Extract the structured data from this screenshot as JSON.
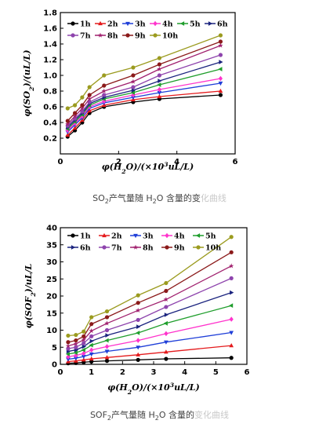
{
  "chart_data": [
    {
      "type": "line",
      "ylabel_parts": [
        "φ(SO",
        "2",
        ")/(uL/L)"
      ],
      "xlabel_parts": [
        "φ(H",
        "2",
        "O)/(×10",
        "3",
        "uL/L)"
      ],
      "xlim": [
        0,
        6
      ],
      "ylim": [
        0.0,
        1.8
      ],
      "xticks": [
        0,
        2,
        4,
        6
      ],
      "yticks": [
        0.2,
        0.4,
        0.6,
        0.8,
        1.0,
        1.2,
        1.4,
        1.6,
        1.8
      ],
      "x": [
        0.25,
        0.5,
        0.75,
        1.0,
        1.5,
        2.5,
        3.4,
        5.5
      ],
      "legend_placement": "top-left",
      "series": [
        {
          "name": "1h",
          "color": "#000000",
          "marker": "circle",
          "values": [
            0.22,
            0.3,
            0.4,
            0.52,
            0.6,
            0.66,
            0.7,
            0.75
          ]
        },
        {
          "name": "2h",
          "color": "#e41a1c",
          "marker": "triangle-up",
          "values": [
            0.24,
            0.33,
            0.43,
            0.55,
            0.62,
            0.69,
            0.73,
            0.8
          ]
        },
        {
          "name": "3h",
          "color": "#1f3fd8",
          "marker": "triangle-down",
          "values": [
            0.28,
            0.37,
            0.46,
            0.58,
            0.65,
            0.72,
            0.78,
            0.9
          ]
        },
        {
          "name": "4h",
          "color": "#ff33cc",
          "marker": "diamond",
          "values": [
            0.3,
            0.39,
            0.48,
            0.6,
            0.67,
            0.75,
            0.82,
            0.96
          ]
        },
        {
          "name": "5h",
          "color": "#1f9e2c",
          "marker": "triangle-left",
          "values": [
            0.32,
            0.41,
            0.5,
            0.62,
            0.7,
            0.78,
            0.88,
            1.08
          ]
        },
        {
          "name": "6h",
          "color": "#1a237e",
          "marker": "triangle-right",
          "values": [
            0.34,
            0.43,
            0.52,
            0.64,
            0.72,
            0.81,
            0.93,
            1.17
          ]
        },
        {
          "name": "7h",
          "color": "#8e44ad",
          "marker": "circle",
          "values": [
            0.36,
            0.45,
            0.54,
            0.66,
            0.75,
            0.85,
            1.0,
            1.26
          ]
        },
        {
          "name": "8h",
          "color": "#a0206e",
          "marker": "star",
          "values": [
            0.38,
            0.48,
            0.58,
            0.7,
            0.8,
            0.92,
            1.08,
            1.38
          ]
        },
        {
          "name": "9h",
          "color": "#8b1a1a",
          "marker": "circle",
          "values": [
            0.42,
            0.52,
            0.62,
            0.75,
            0.87,
            1.0,
            1.14,
            1.43
          ]
        },
        {
          "name": "10h",
          "color": "#9b9b1f",
          "marker": "circle",
          "values": [
            0.58,
            0.62,
            0.72,
            0.85,
            1.0,
            1.1,
            1.22,
            1.51
          ]
        }
      ]
    },
    {
      "type": "line",
      "ylabel_parts": [
        "φ(SOF",
        "2",
        ")/uL/L"
      ],
      "xlabel_parts": [
        "φ(H",
        "2",
        "O)/(×10",
        "3",
        "uL/L)"
      ],
      "xlim": [
        0,
        6
      ],
      "ylim": [
        0,
        40
      ],
      "xticks": [
        0,
        1,
        2,
        3,
        4,
        5,
        6
      ],
      "yticks": [
        0,
        5,
        10,
        15,
        20,
        25,
        30,
        35,
        40
      ],
      "x": [
        0.25,
        0.5,
        0.75,
        1.0,
        1.5,
        2.5,
        3.4,
        5.5
      ],
      "legend_placement": "top-left",
      "series": [
        {
          "name": "1h",
          "color": "#000000",
          "marker": "circle",
          "values": [
            0.3,
            0.4,
            0.6,
            0.8,
            1.0,
            1.3,
            1.6,
            1.9
          ]
        },
        {
          "name": "2h",
          "color": "#e41a1c",
          "marker": "triangle-up",
          "values": [
            0.8,
            1.0,
            1.3,
            1.6,
            2.0,
            2.8,
            3.6,
            5.5
          ]
        },
        {
          "name": "3h",
          "color": "#1f3fd8",
          "marker": "triangle-down",
          "values": [
            1.5,
            1.8,
            2.3,
            3.0,
            3.8,
            5.0,
            6.5,
            9.3
          ]
        },
        {
          "name": "4h",
          "color": "#ff33cc",
          "marker": "diamond",
          "values": [
            2.2,
            2.6,
            3.2,
            4.2,
            5.2,
            7.0,
            9.0,
            13.2
          ]
        },
        {
          "name": "5h",
          "color": "#1f9e2c",
          "marker": "triangle-left",
          "values": [
            3.0,
            3.4,
            4.2,
            5.6,
            7.0,
            9.2,
            12.0,
            17.2
          ]
        },
        {
          "name": "6h",
          "color": "#1a237e",
          "marker": "triangle-right",
          "values": [
            3.8,
            4.2,
            5.2,
            6.8,
            8.5,
            11.0,
            14.5,
            21.0
          ]
        },
        {
          "name": "7h",
          "color": "#8e44ad",
          "marker": "circle",
          "values": [
            4.6,
            5.0,
            6.2,
            8.2,
            10.0,
            13.0,
            16.8,
            25.2
          ]
        },
        {
          "name": "8h",
          "color": "#a0206e",
          "marker": "star",
          "values": [
            5.4,
            6.0,
            7.2,
            9.8,
            12.0,
            15.8,
            19.0,
            28.8
          ]
        },
        {
          "name": "9h",
          "color": "#8b1a1a",
          "marker": "circle",
          "values": [
            6.5,
            7.0,
            8.2,
            11.8,
            13.8,
            18.0,
            21.5,
            32.8
          ]
        },
        {
          "name": "10h",
          "color": "#9b9b1f",
          "marker": "circle",
          "values": [
            8.4,
            8.6,
            9.6,
            13.8,
            15.5,
            20.2,
            23.8,
            37.3
          ]
        }
      ]
    }
  ],
  "captions": [
    {
      "before": "SO",
      "sub": "2",
      "after": "产气量随 H",
      "sub2": "2",
      "after2": "O 含量的变",
      "faded": "化曲线"
    },
    {
      "before": "SOF",
      "sub": "2",
      "after": "产气量随 H",
      "sub2": "2",
      "after2": "O 含量的",
      "faded": "变化曲线"
    }
  ]
}
